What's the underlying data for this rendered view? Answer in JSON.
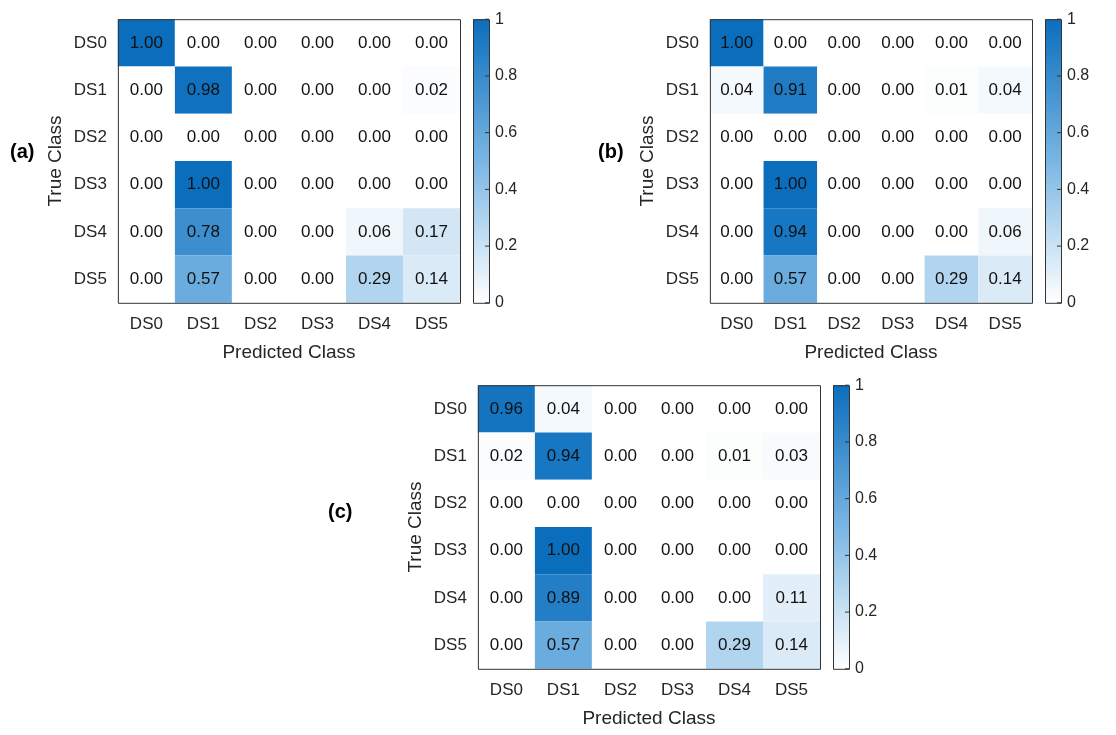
{
  "chart_data": [
    {
      "type": "heatmap",
      "title": "(a)",
      "xlabel": "Predicted Class",
      "ylabel": "True Class",
      "categories": [
        "DS0",
        "DS1",
        "DS2",
        "DS3",
        "DS4",
        "DS5"
      ],
      "y_categories": [
        "DS0",
        "DS1",
        "DS2",
        "DS3",
        "DS4",
        "DS5"
      ],
      "cells": [
        [
          1,
          0,
          0,
          0,
          0,
          0
        ],
        [
          0,
          0.98,
          0,
          0,
          0,
          0.02
        ],
        [
          0,
          0,
          0,
          0,
          0,
          0
        ],
        [
          0,
          1,
          0,
          0,
          0,
          0
        ],
        [
          0,
          0.78,
          0,
          0,
          0.06,
          0.17
        ],
        [
          0,
          0.57,
          0,
          0,
          0.29,
          0.14
        ]
      ],
      "cell_labels": [
        [
          "1.00",
          "0.00",
          "0.00",
          "0.00",
          "0.00",
          "0.00"
        ],
        [
          "0.00",
          "0.98",
          "0.00",
          "0.00",
          "0.00",
          "0.02"
        ],
        [
          "0.00",
          "0.00",
          "0.00",
          "0.00",
          "0.00",
          "0.00"
        ],
        [
          "0.00",
          "1.00",
          "0.00",
          "0.00",
          "0.00",
          "0.00"
        ],
        [
          "0.00",
          "0.78",
          "0.00",
          "0.00",
          "0.06",
          "0.17"
        ],
        [
          "0.00",
          "0.57",
          "0.00",
          "0.00",
          "0.29",
          "0.14"
        ]
      ],
      "clim": [
        0,
        1
      ],
      "cticks": [
        0,
        0.2,
        0.4,
        0.6,
        0.8,
        1
      ]
    },
    {
      "type": "heatmap",
      "title": "(b)",
      "xlabel": "Predicted Class",
      "ylabel": "True Class",
      "categories": [
        "DS0",
        "DS1",
        "DS2",
        "DS3",
        "DS4",
        "DS5"
      ],
      "y_categories": [
        "DS0",
        "DS1",
        "DS2",
        "DS3",
        "DS4",
        "DS5"
      ],
      "cells": [
        [
          1,
          0,
          0,
          0,
          0,
          0
        ],
        [
          0.04,
          0.91,
          0,
          0,
          0.01,
          0.04
        ],
        [
          0,
          0,
          0,
          0,
          0,
          0
        ],
        [
          0,
          1,
          0,
          0,
          0,
          0
        ],
        [
          0,
          0.94,
          0,
          0,
          0,
          0.06
        ],
        [
          0,
          0.57,
          0,
          0,
          0.29,
          0.14
        ]
      ],
      "cell_labels": [
        [
          "1.00",
          "0.00",
          "0.00",
          "0.00",
          "0.00",
          "0.00"
        ],
        [
          "0.04",
          "0.91",
          "0.00",
          "0.00",
          "0.01",
          "0.04"
        ],
        [
          "0.00",
          "0.00",
          "0.00",
          "0.00",
          "0.00",
          "0.00"
        ],
        [
          "0.00",
          "1.00",
          "0.00",
          "0.00",
          "0.00",
          "0.00"
        ],
        [
          "0.00",
          "0.94",
          "0.00",
          "0.00",
          "0.00",
          "0.06"
        ],
        [
          "0.00",
          "0.57",
          "0.00",
          "0.00",
          "0.29",
          "0.14"
        ]
      ],
      "clim": [
        0,
        1
      ],
      "cticks": [
        0,
        0.2,
        0.4,
        0.6,
        0.8,
        1
      ]
    },
    {
      "type": "heatmap",
      "title": "(c)",
      "xlabel": "Predicted Class",
      "ylabel": "True Class",
      "categories": [
        "DS0",
        "DS1",
        "DS2",
        "DS3",
        "DS4",
        "DS5"
      ],
      "y_categories": [
        "DS0",
        "DS1",
        "DS2",
        "DS3",
        "DS4",
        "DS5"
      ],
      "cells": [
        [
          0.96,
          0.04,
          0,
          0,
          0,
          0
        ],
        [
          0.02,
          0.94,
          0,
          0,
          0.01,
          0.03
        ],
        [
          0,
          0,
          0,
          0,
          0,
          0
        ],
        [
          0,
          1,
          0,
          0,
          0,
          0
        ],
        [
          0,
          0.89,
          0,
          0,
          0,
          0.11
        ],
        [
          0,
          0.57,
          0,
          0,
          0.29,
          0.14
        ]
      ],
      "cell_labels": [
        [
          "0.96",
          "0.04",
          "0.00",
          "0.00",
          "0.00",
          "0.00"
        ],
        [
          "0.02",
          "0.94",
          "0.00",
          "0.00",
          "0.01",
          "0.03"
        ],
        [
          "0.00",
          "0.00",
          "0.00",
          "0.00",
          "0.00",
          "0.00"
        ],
        [
          "0.00",
          "1.00",
          "0.00",
          "0.00",
          "0.00",
          "0.00"
        ],
        [
          "0.00",
          "0.89",
          "0.00",
          "0.00",
          "0.00",
          "0.11"
        ],
        [
          "0.00",
          "0.57",
          "0.00",
          "0.00",
          "0.29",
          "0.14"
        ]
      ],
      "clim": [
        0,
        1
      ],
      "cticks": [
        0,
        0.2,
        0.4,
        0.6,
        0.8,
        1
      ]
    }
  ]
}
